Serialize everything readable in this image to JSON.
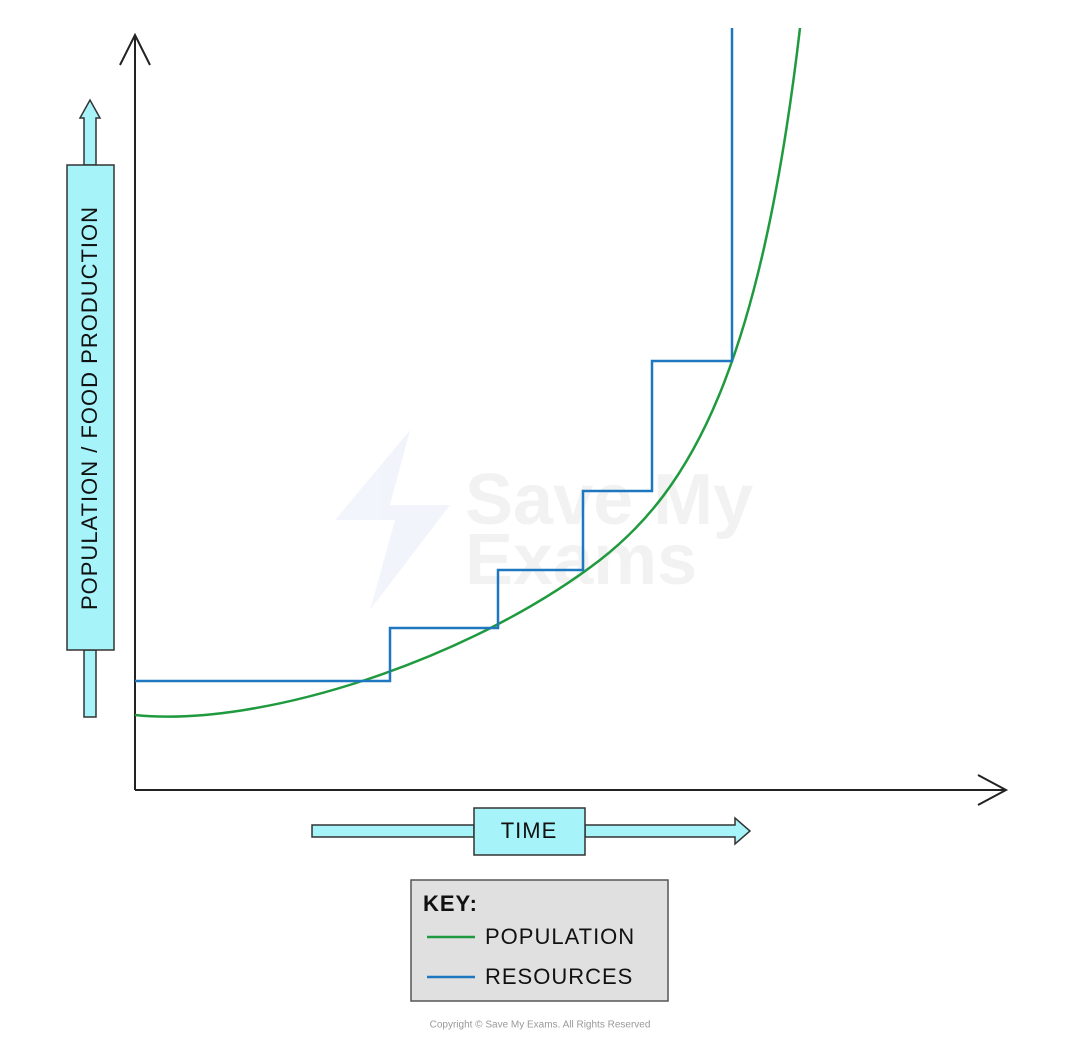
{
  "axes": {
    "y_label": "POPULATION / FOOD PRODUCTION",
    "x_label": "TIME"
  },
  "key": {
    "title": "KEY:",
    "items": [
      {
        "label": "POPULATION",
        "color": "#1f9a3e"
      },
      {
        "label": "RESOURCES",
        "color": "#1f77c0"
      }
    ]
  },
  "watermark": {
    "lines": [
      "Save My",
      "Exams"
    ]
  },
  "copyright": "Copyright © Save My Exams. All Rights Reserved"
}
